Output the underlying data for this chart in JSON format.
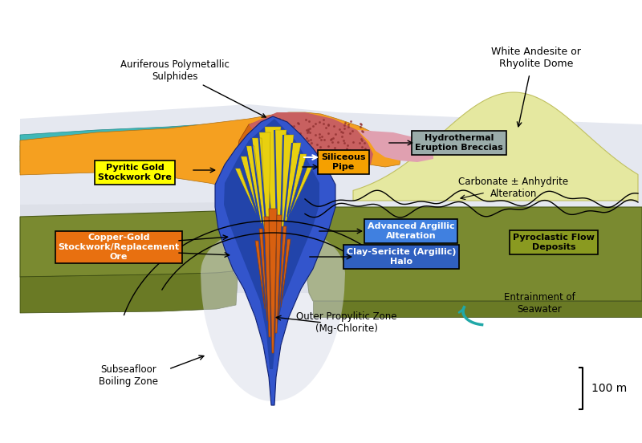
{
  "labels": {
    "auriferous": "Auriferous Polymetallic\nSulphides",
    "white_andesite": "White Andesite or\nRhyolite Dome",
    "hydrothermal": "Hydrothermal\nEruption Breccias",
    "siliceous": "Siliceous\nPipe",
    "pyritic": "Pyritic Gold\nStockwork Ore",
    "carbonate": "Carbonate ± Anhydrite\nAlteration",
    "copper_gold": "Copper-Gold\nStockwork/Replacement\nOre",
    "advanced": "Advanced Argillic\nAlteration",
    "pyroclastic": "Pyroclastic Flow\nDeposits",
    "clay_sericite": "Clay-Sericite (Argillic)\nHalo",
    "outer_propylitic": "Outer Propylitic Zone\n(Mg-Chlorite)",
    "entrainment": "Entrainment of\nSeawater",
    "subseafloor": "Subseafloor\nBoiling Zone",
    "scale": "100 m"
  },
  "colors": {
    "orange_sulphides": "#f5a020",
    "dark_orange_inner": "#d46810",
    "red_breccias": "#c86050",
    "pink_breccias": "#e0a0a0",
    "teal_band": "#40b8b8",
    "green_band": "#4a8a50",
    "blue_outer": "#3355cc",
    "blue_mid": "#2244aa",
    "blue_inner": "#1133aa",
    "yellow_vein": "#e8d010",
    "orange_vein": "#d86010",
    "green_layer": "#7a8a30",
    "green_layer2": "#6a7a25",
    "light_dome": "#e5e8a0",
    "light_bg": "#e8eaf0",
    "white_zone": "#f0f0f8",
    "gray_box": "#9aacaa",
    "yellow_box": "#ffff00",
    "orange_box": "#e87010",
    "blue_box": "#3a72d8",
    "olive_box": "#8a9a20",
    "teal_arrow": "#20a8a8"
  }
}
